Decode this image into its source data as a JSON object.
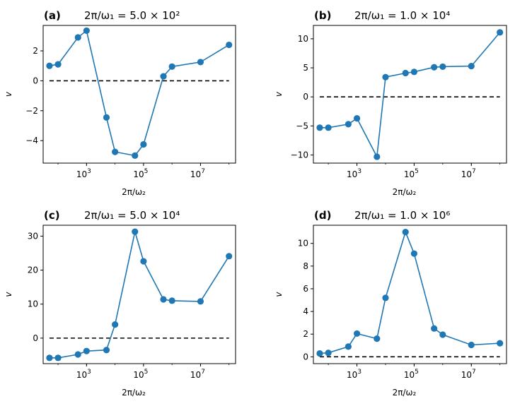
{
  "chart_data": [
    {
      "type": "line",
      "panel_label": "(a)",
      "title": "2π/ω₁ = 5.0 × 10²",
      "xlabel": "2π/ω₂",
      "ylabel": "v",
      "xscale": "log",
      "x": [
        50,
        100,
        500,
        1000,
        5000,
        10000,
        50000,
        100000,
        500000,
        1000000,
        10000000,
        100000000
      ],
      "values": [
        1.0,
        1.1,
        2.9,
        3.35,
        -2.45,
        -4.75,
        -5.0,
        -4.25,
        0.3,
        0.95,
        1.25,
        2.4
      ],
      "baseline": 0,
      "ylim": [
        -5.5,
        3.7
      ],
      "yticks": [
        -4,
        -2,
        0,
        2
      ],
      "ytick_labels": [
        "−4",
        "−2",
        "0",
        "2"
      ],
      "xticks": [
        1000,
        100000,
        10000000
      ],
      "xtick_labels": [
        [
          "10",
          "3"
        ],
        [
          "10",
          "5"
        ],
        [
          "10",
          "7"
        ]
      ],
      "color": "#1f77b4"
    },
    {
      "type": "line",
      "panel_label": "(b)",
      "title": "2π/ω₁ = 1.0 × 10⁴",
      "xlabel": "2π/ω₂",
      "ylabel": "v",
      "xscale": "log",
      "x": [
        50,
        100,
        500,
        1000,
        5000,
        10000,
        50000,
        100000,
        500000,
        1000000,
        10000000,
        100000000
      ],
      "values": [
        -5.3,
        -5.3,
        -4.7,
        -3.7,
        -10.3,
        3.4,
        4.1,
        4.3,
        5.1,
        5.2,
        5.3,
        11.1
      ],
      "baseline": 0,
      "ylim": [
        -11.4,
        12.3
      ],
      "yticks": [
        -10,
        -5,
        0,
        5,
        10
      ],
      "ytick_labels": [
        "−10",
        "−5",
        "0",
        "5",
        "10"
      ],
      "xticks": [
        1000,
        100000,
        10000000
      ],
      "xtick_labels": [
        [
          "10",
          "3"
        ],
        [
          "10",
          "5"
        ],
        [
          "10",
          "7"
        ]
      ],
      "color": "#1f77b4"
    },
    {
      "type": "line",
      "panel_label": "(c)",
      "title": "2π/ω₁ = 5.0 × 10⁴",
      "xlabel": "2π/ω₂",
      "ylabel": "v",
      "xscale": "log",
      "x": [
        50,
        100,
        500,
        1000,
        5000,
        10000,
        50000,
        100000,
        500000,
        1000000,
        10000000,
        100000000
      ],
      "values": [
        -5.8,
        -5.8,
        -4.8,
        -3.8,
        -3.5,
        4.0,
        31.3,
        22.6,
        11.4,
        11.0,
        10.8,
        24.1
      ],
      "baseline": 0,
      "ylim": [
        -7.5,
        33.2
      ],
      "yticks": [
        0,
        10,
        20,
        30
      ],
      "ytick_labels": [
        "0",
        "10",
        "20",
        "30"
      ],
      "xticks": [
        1000,
        100000,
        10000000
      ],
      "xtick_labels": [
        [
          "10",
          "3"
        ],
        [
          "10",
          "5"
        ],
        [
          "10",
          "7"
        ]
      ],
      "color": "#1f77b4"
    },
    {
      "type": "line",
      "panel_label": "(d)",
      "title": "2π/ω₁ = 1.0 × 10⁶",
      "xlabel": "2π/ω₂",
      "ylabel": "v",
      "xscale": "log",
      "x": [
        50,
        100,
        500,
        1000,
        5000,
        10000,
        50000,
        100000,
        500000,
        1000000,
        10000000,
        100000000
      ],
      "values": [
        0.3,
        0.35,
        0.9,
        2.05,
        1.6,
        5.2,
        11.0,
        9.1,
        2.5,
        1.95,
        1.05,
        1.2
      ],
      "baseline": 0,
      "ylim": [
        -0.6,
        11.6
      ],
      "yticks": [
        0,
        2,
        4,
        6,
        8,
        10
      ],
      "ytick_labels": [
        "0",
        "2",
        "4",
        "6",
        "8",
        "10"
      ],
      "xticks": [
        1000,
        100000,
        10000000
      ],
      "xtick_labels": [
        [
          "10",
          "3"
        ],
        [
          "10",
          "5"
        ],
        [
          "10",
          "7"
        ]
      ],
      "color": "#1f77b4"
    }
  ]
}
